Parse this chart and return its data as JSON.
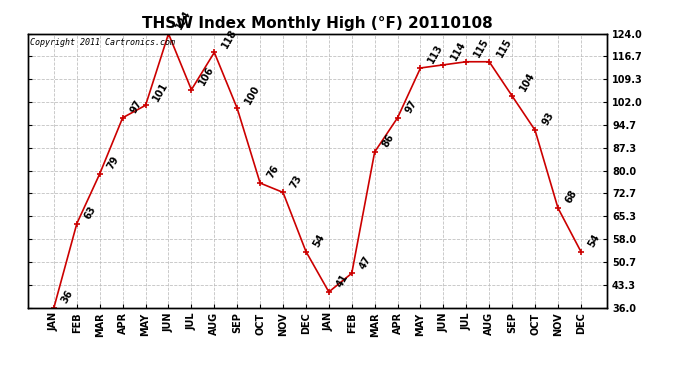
{
  "title": "THSW Index Monthly High (°F) 20110108",
  "copyright": "Copyright 2011 Cartronics.com",
  "x_labels": [
    "JAN",
    "FEB",
    "MAR",
    "APR",
    "MAY",
    "JUN",
    "JUL",
    "AUG",
    "SEP",
    "OCT",
    "NOV",
    "DEC",
    "JAN",
    "FEB",
    "MAR",
    "APR",
    "MAY",
    "JUN",
    "JUL",
    "AUG",
    "SEP",
    "OCT",
    "NOV",
    "DEC"
  ],
  "values": [
    36,
    63,
    79,
    97,
    101,
    124,
    106,
    118,
    100,
    76,
    73,
    54,
    41,
    47,
    86,
    97,
    113,
    114,
    115,
    115,
    104,
    93,
    68,
    54
  ],
  "line_color": "#cc0000",
  "marker_color": "#cc0000",
  "background_color": "#ffffff",
  "grid_color": "#bbbbbb",
  "ymin": 36.0,
  "ymax": 124.0,
  "yticks_right": [
    124.0,
    116.7,
    109.3,
    102.0,
    94.7,
    87.3,
    80.0,
    72.7,
    65.3,
    58.0,
    50.7,
    43.3,
    36.0
  ],
  "title_fontsize": 11,
  "label_fontsize": 7,
  "annotation_fontsize": 7,
  "copyright_fontsize": 6
}
